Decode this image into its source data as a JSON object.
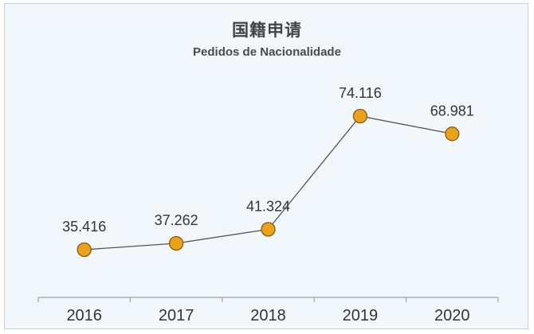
{
  "chart_data": {
    "type": "line",
    "title": "国籍申请",
    "subtitle": "Pedidos de Nacionalidade",
    "xlabel": "",
    "ylabel": "",
    "categories": [
      "2016",
      "2017",
      "2018",
      "2019",
      "2020"
    ],
    "series": [
      {
        "values": [
          35416,
          37262,
          41324,
          74116,
          68981
        ],
        "labels": [
          "35.416",
          "37.262",
          "41.324",
          "74.116",
          "68.981"
        ]
      }
    ],
    "grid": false,
    "legend": "none",
    "colors": {
      "line": "#555555",
      "marker_fill": "#e8a21c",
      "marker_stroke": "#8a5a10",
      "background": "#f2f7fc",
      "axis": "#9aa3ab"
    }
  }
}
